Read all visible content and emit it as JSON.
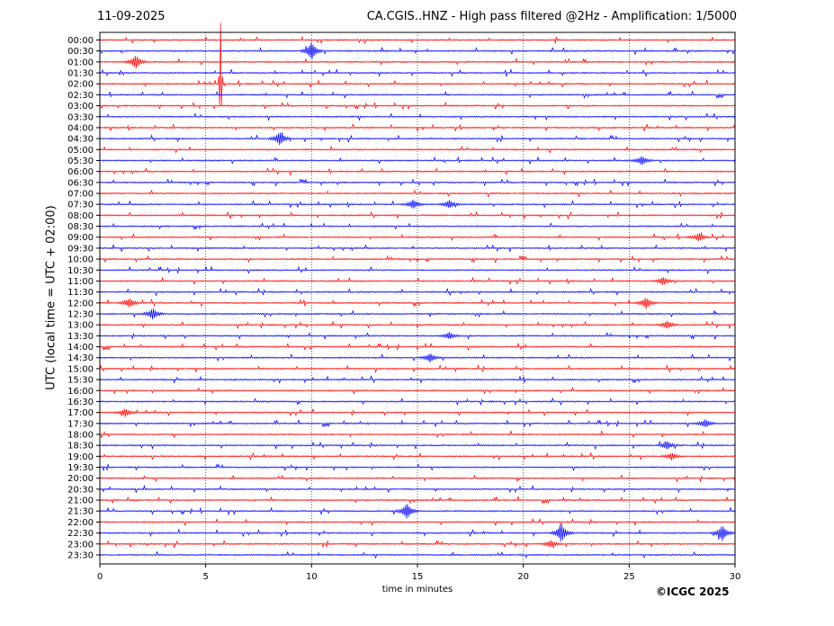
{
  "header": {
    "date": "11-09-2025",
    "title": "CA.CGIS..HNZ - High pass filtered @2Hz - Amplification: 1/5000"
  },
  "footer": {
    "copyright": "©ICGC 2025"
  },
  "chart_data": {
    "type": "line",
    "title": "CA.CGIS..HNZ - High pass filtered @2Hz - Amplification: 1/5000",
    "xlabel": "time in minutes",
    "ylabel": "UTC (local time = UTC + 02:00)",
    "xlim": [
      0,
      30
    ],
    "x_ticks": [
      0,
      5,
      10,
      15,
      20,
      25,
      30
    ],
    "grid": "vertical dotted at x ticks",
    "colors": {
      "odd_rows": "#ff0000",
      "even_rows": "#0000ff",
      "frame": "#000000"
    },
    "rows": [
      "00:00",
      "00:30",
      "01:00",
      "01:30",
      "02:00",
      "02:30",
      "03:00",
      "03:30",
      "04:00",
      "04:30",
      "05:00",
      "05:30",
      "06:00",
      "06:30",
      "07:00",
      "07:30",
      "08:00",
      "08:30",
      "09:00",
      "09:30",
      "10:00",
      "10:30",
      "11:00",
      "11:30",
      "12:00",
      "12:30",
      "13:00",
      "13:30",
      "14:00",
      "14:30",
      "15:00",
      "15:30",
      "16:00",
      "16:30",
      "17:00",
      "17:30",
      "18:00",
      "18:30",
      "19:00",
      "19:30",
      "20:00",
      "20:30",
      "21:00",
      "21:30",
      "22:00",
      "22:30",
      "23:00",
      "23:30"
    ],
    "events": [
      {
        "row": "00:30",
        "minute": 10.0,
        "amplitude": 0.8
      },
      {
        "row": "01:00",
        "minute": 1.7,
        "amplitude": 0.6
      },
      {
        "row": "02:00",
        "minute": 5.7,
        "amplitude": 5.5
      },
      {
        "row": "04:30",
        "minute": 8.5,
        "amplitude": 0.6
      },
      {
        "row": "05:30",
        "minute": 25.6,
        "amplitude": 0.4
      },
      {
        "row": "07:30",
        "minute": 14.8,
        "amplitude": 0.4
      },
      {
        "row": "07:30",
        "minute": 16.5,
        "amplitude": 0.35
      },
      {
        "row": "09:00",
        "minute": 28.3,
        "amplitude": 0.35
      },
      {
        "row": "11:00",
        "minute": 26.6,
        "amplitude": 0.35
      },
      {
        "row": "12:00",
        "minute": 25.8,
        "amplitude": 0.5
      },
      {
        "row": "12:00",
        "minute": 1.4,
        "amplitude": 0.4
      },
      {
        "row": "12:30",
        "minute": 2.5,
        "amplitude": 0.5
      },
      {
        "row": "13:00",
        "minute": 26.8,
        "amplitude": 0.35
      },
      {
        "row": "13:30",
        "minute": 16.5,
        "amplitude": 0.3
      },
      {
        "row": "14:30",
        "minute": 15.6,
        "amplitude": 0.4
      },
      {
        "row": "17:00",
        "minute": 1.2,
        "amplitude": 0.35
      },
      {
        "row": "17:30",
        "minute": 28.6,
        "amplitude": 0.35
      },
      {
        "row": "18:30",
        "minute": 26.8,
        "amplitude": 0.35
      },
      {
        "row": "19:00",
        "minute": 27.0,
        "amplitude": 0.3
      },
      {
        "row": "21:30",
        "minute": 14.5,
        "amplitude": 0.7
      },
      {
        "row": "22:30",
        "minute": 21.8,
        "amplitude": 0.8
      },
      {
        "row": "22:30",
        "minute": 29.4,
        "amplitude": 0.7
      },
      {
        "row": "23:00",
        "minute": 21.3,
        "amplitude": 0.3
      }
    ]
  }
}
